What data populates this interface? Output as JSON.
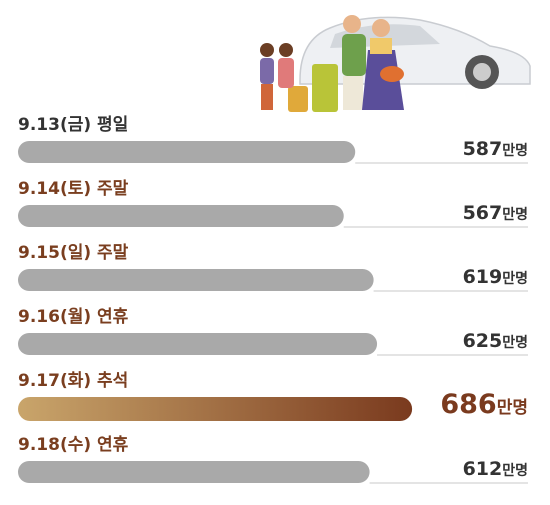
{
  "chart_data": {
    "type": "bar",
    "categories": [
      "9.13(금) 평일",
      "9.14(토) 주말",
      "9.15(일) 주말",
      "9.16(월) 연휴",
      "9.17(화) 추석",
      "9.18(수) 연휴"
    ],
    "values": [
      587,
      567,
      619,
      625,
      686,
      612
    ],
    "value_labels": [
      "587만명",
      "567만명",
      "619만명",
      "625만명",
      "686만명",
      "612만명"
    ],
    "color": "#a9a9a9",
    "highlight_index": 4,
    "highlight_colors": [
      "#c9a56b",
      "#7a3a1e"
    ],
    "label_colors": [
      "#333333",
      "#7a3e1f",
      "#7a3e1f",
      "#7a3e1f",
      "#7a3e1f",
      "#7a3e1f"
    ]
  }
}
